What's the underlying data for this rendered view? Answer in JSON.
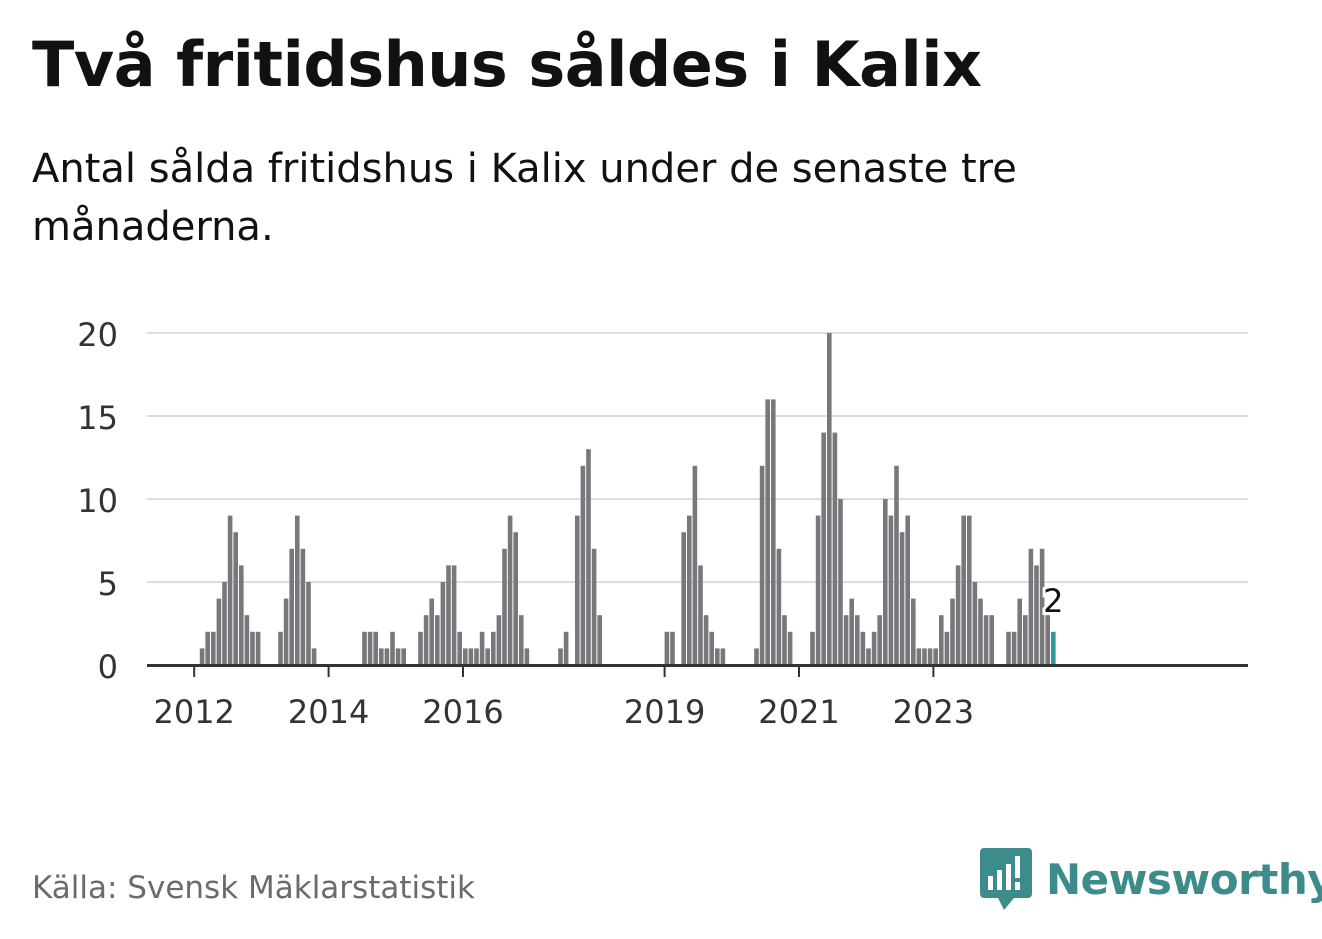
{
  "header": {
    "title": "Två fritidshus såldes i Kalix",
    "subtitle": "Antal sålda fritidshus i Kalix under de senaste tre månaderna."
  },
  "footer": {
    "source": "Källa: Svensk Mäklarstatistik",
    "brand": "Newsworthy"
  },
  "colors": {
    "bar": "#77777c",
    "highlight": "#2a9d9a",
    "grid": "#dddddd",
    "axis": "#333333",
    "brand": "#3c8c8c"
  },
  "chart_data": {
    "type": "bar",
    "x_tick_labels": [
      "2012",
      "2014",
      "2016",
      "2019",
      "2021",
      "2023"
    ],
    "y_ticks": [
      0,
      5,
      10,
      15,
      20
    ],
    "ylim": [
      0,
      20
    ],
    "grid": true,
    "start_month": "2011-01",
    "values": [
      0,
      0,
      0,
      0,
      0,
      0,
      0,
      0,
      0,
      0,
      0,
      0,
      0,
      1,
      2,
      2,
      4,
      5,
      9,
      8,
      6,
      3,
      2,
      2,
      0,
      0,
      0,
      2,
      4,
      7,
      9,
      7,
      5,
      1,
      0,
      0,
      0,
      0,
      0,
      0,
      0,
      0,
      2,
      2,
      2,
      1,
      1,
      2,
      1,
      1,
      0,
      0,
      2,
      3,
      4,
      3,
      5,
      6,
      6,
      2,
      1,
      1,
      1,
      2,
      1,
      2,
      3,
      7,
      9,
      8,
      3,
      1,
      0,
      0,
      0,
      0,
      0,
      1,
      2,
      0,
      9,
      12,
      13,
      7,
      3,
      0,
      0,
      0,
      0,
      0,
      0,
      0,
      0,
      0,
      0,
      0,
      2,
      2,
      0,
      8,
      9,
      12,
      6,
      3,
      2,
      1,
      1,
      0,
      0,
      0,
      0,
      0,
      1,
      12,
      16,
      16,
      7,
      3,
      2,
      0,
      0,
      0,
      2,
      9,
      14,
      20,
      14,
      10,
      3,
      4,
      3,
      2,
      1,
      2,
      3,
      10,
      9,
      12,
      8,
      9,
      4,
      1,
      1,
      1,
      1,
      3,
      2,
      4,
      6,
      9,
      9,
      5,
      4,
      3,
      3,
      0,
      0,
      2,
      2,
      4,
      3,
      7,
      6,
      7,
      3,
      2
    ],
    "highlight_label": "2"
  }
}
